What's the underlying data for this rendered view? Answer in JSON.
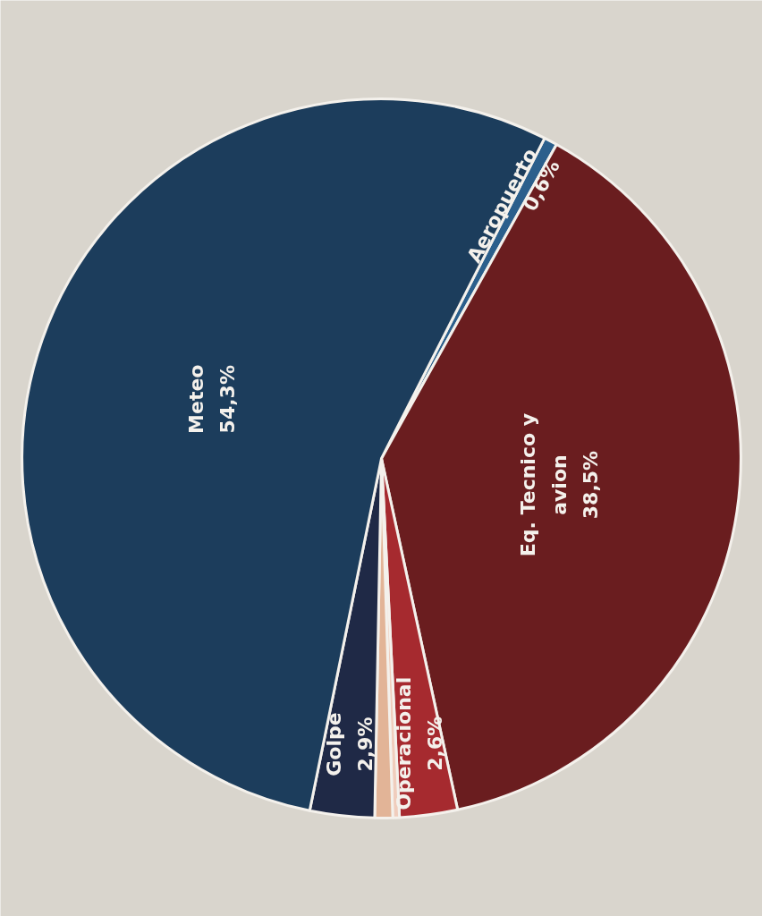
{
  "chart_data": {
    "type": "pie",
    "categories": [
      "Aeropuerto",
      "Eq. Tecnico y avion",
      "Operacional",
      null,
      null,
      "Golpe",
      "Meteo"
    ],
    "values": [
      0.6,
      38.5,
      2.6,
      0.3,
      0.8,
      2.9,
      54.3
    ],
    "colors": [
      "#2b5f8c",
      "#6a1d1f",
      "#a62a2f",
      "#f0cdbd",
      "#e2b497",
      "#1f2946",
      "#1c3d5c"
    ],
    "value_labels": [
      "0,6%",
      "38,5%",
      "2,6%",
      null,
      null,
      "2,9%",
      "54,3%"
    ]
  }
}
